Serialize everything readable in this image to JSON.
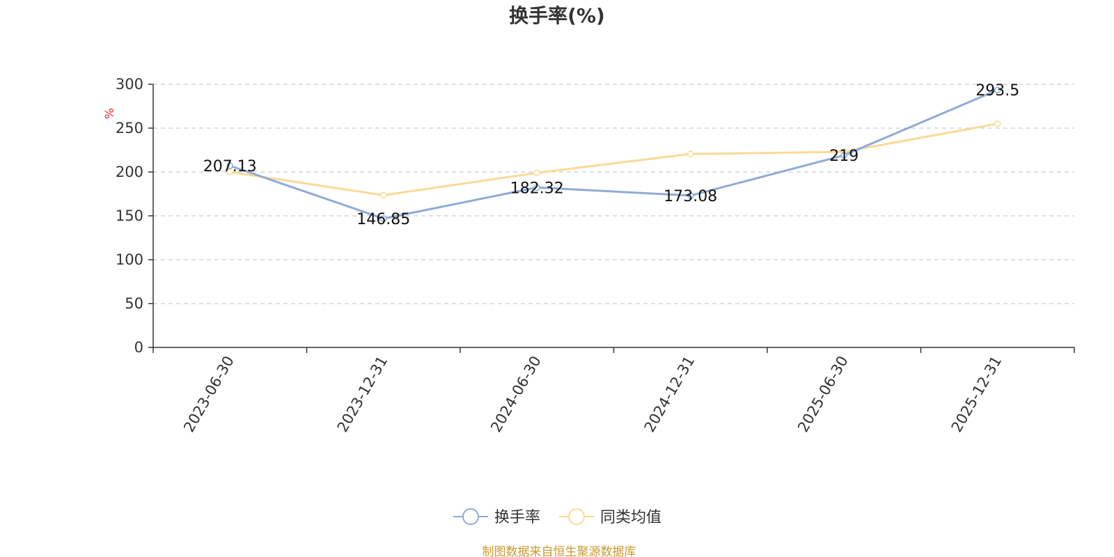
{
  "chart_data": {
    "type": "line",
    "title": "换手率(%)",
    "ylabel": "%",
    "categories": [
      "2023-06-30",
      "2023-12-31",
      "2024-06-30",
      "2024-12-31",
      "2025-06-30",
      "2025-12-31"
    ],
    "series": [
      {
        "name": "换手率",
        "values": [
          207.13,
          146.85,
          182.32,
          173.08,
          219,
          293.5
        ],
        "color": "#8faad8",
        "show_labels": true
      },
      {
        "name": "同类均值",
        "values": [
          200,
          173.5,
          199,
          220.5,
          223,
          255
        ],
        "color": "#fbd996",
        "show_labels": false
      }
    ],
    "ylim": [
      0,
      300
    ],
    "yticks": [
      0,
      50,
      100,
      150,
      200,
      250,
      300
    ],
    "grid": true,
    "legend_position": "bottom",
    "unit_color": "#e5322d"
  },
  "footer": {
    "source": "制图数据来自恒生聚源数据库"
  }
}
